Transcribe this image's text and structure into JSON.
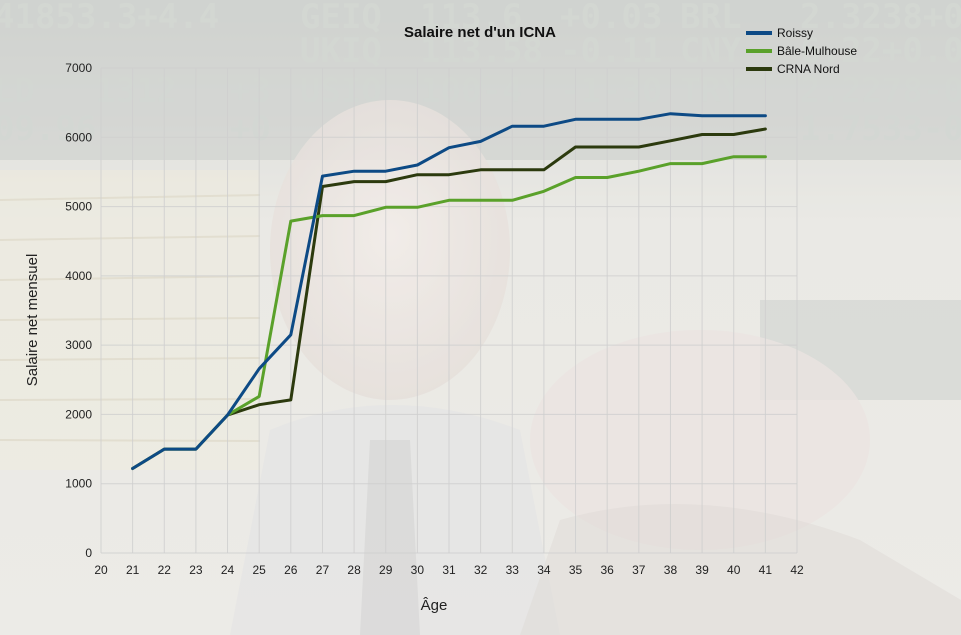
{
  "chart_data": {
    "type": "line",
    "title": "Salaire net d'un ICNA",
    "xlabel": "Âge",
    "ylabel": "Salaire net mensuel",
    "xlim": [
      20,
      42
    ],
    "ylim": [
      0,
      7000
    ],
    "xticks": [
      "20",
      "21",
      "22",
      "23",
      "24",
      "25",
      "26",
      "27",
      "28",
      "29",
      "30",
      "31",
      "32",
      "33",
      "34",
      "35",
      "36",
      "37",
      "38",
      "39",
      "40",
      "41",
      "42"
    ],
    "yticks": [
      "0",
      "1000",
      "2000",
      "3000",
      "4000",
      "5000",
      "6000",
      "7000"
    ],
    "grid": true,
    "legend_position": "top-right",
    "series": [
      {
        "name": "Roissy",
        "color": "#0d4a85",
        "x": [
          21,
          22,
          23,
          24,
          25,
          26,
          27,
          28,
          29,
          30,
          31,
          32,
          33,
          34,
          35,
          36,
          37,
          38,
          39,
          40,
          41
        ],
        "y": [
          1220,
          1500,
          1500,
          1990,
          2660,
          3150,
          5440,
          5510,
          5510,
          5600,
          5850,
          5940,
          6160,
          6160,
          6260,
          6260,
          6260,
          6340,
          6310,
          6310,
          6310
        ]
      },
      {
        "name": "Bâle-Mulhouse",
        "color": "#5aa12a",
        "x": [
          21,
          22,
          23,
          24,
          25,
          26,
          27,
          28,
          29,
          30,
          31,
          32,
          33,
          34,
          35,
          36,
          37,
          38,
          39,
          40,
          41
        ],
        "y": [
          1220,
          1500,
          1500,
          1990,
          2260,
          4790,
          4870,
          4870,
          4990,
          4990,
          5090,
          5090,
          5090,
          5220,
          5420,
          5420,
          5510,
          5620,
          5620,
          5720,
          5720
        ]
      },
      {
        "name": "CRNA Nord",
        "color": "#2c3a0e",
        "x": [
          21,
          22,
          23,
          24,
          25,
          26,
          27,
          28,
          29,
          30,
          31,
          32,
          33,
          34,
          35,
          36,
          37,
          38,
          39,
          40,
          41
        ],
        "y": [
          1220,
          1500,
          1500,
          1990,
          2140,
          2210,
          5290,
          5360,
          5360,
          5460,
          5460,
          5530,
          5530,
          5530,
          5860,
          5860,
          5860,
          5950,
          6040,
          6040,
          6120
        ]
      }
    ]
  }
}
